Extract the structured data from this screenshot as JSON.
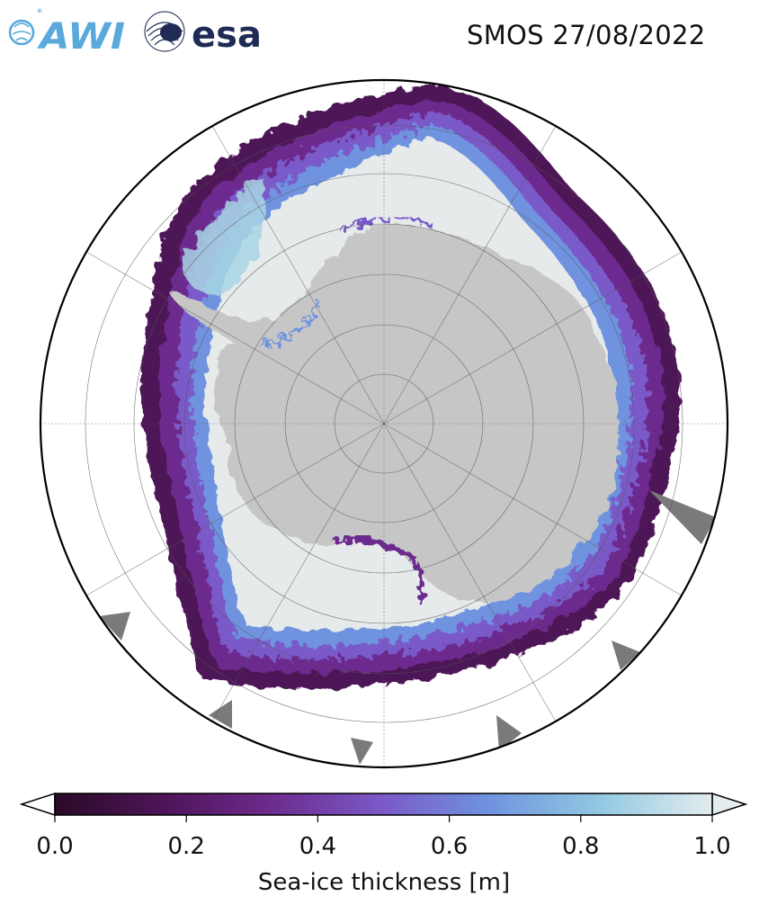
{
  "header": {
    "title": "SMOS 27/08/2022",
    "logos": [
      {
        "name": "AWI",
        "text": "AWI",
        "color": "#5aa9dc"
      },
      {
        "name": "esa",
        "text": "esa",
        "color": "#1f2a55"
      }
    ]
  },
  "map": {
    "projection": "south-polar-stereographic",
    "region": "Antarctica / Southern Ocean",
    "land_color": "#c6c6c6",
    "missing_color": "#7a7a7a",
    "grid": true
  },
  "colorbar": {
    "label": "Sea-ice thickness [m]",
    "ticks": [
      "0.0",
      "0.2",
      "0.4",
      "0.6",
      "0.8",
      "1.0"
    ],
    "range": [
      0.0,
      1.0
    ],
    "extend": "both",
    "colors": [
      "#2a0a26",
      "#4d1457",
      "#6d2c8e",
      "#7a5ac8",
      "#6f93df",
      "#92c9e2",
      "#e3ecee"
    ]
  }
}
